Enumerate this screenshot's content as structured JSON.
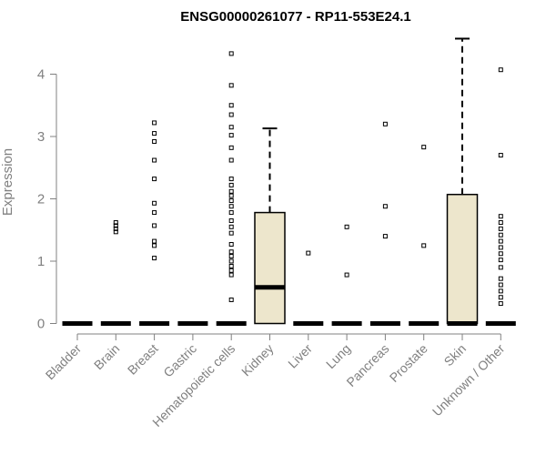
{
  "chart_data": {
    "type": "box",
    "title": "ENSG00000261077 - RP11-553E24.1",
    "xlabel": "",
    "ylabel": "Expression",
    "ylim": [
      0,
      4.6
    ],
    "yticks": [
      0,
      1,
      2,
      3,
      4
    ],
    "grid": false,
    "legend": "none",
    "colors": {
      "box_fill": "#EDE6CC",
      "stroke": "#000000",
      "axis_text": "#808080",
      "title": "#000000"
    },
    "categories": [
      "Bladder",
      "Brain",
      "Breast",
      "Gastric",
      "Hematopoietic cells",
      "Kidney",
      "Liver",
      "Lung",
      "Pancreas",
      "Prostate",
      "Skin",
      "Unknown / Other"
    ],
    "boxes": [
      {
        "q1": 0,
        "median": 0,
        "q3": 0,
        "whisker_low": 0,
        "whisker_high": 0,
        "outliers": []
      },
      {
        "q1": 0,
        "median": 0,
        "q3": 0,
        "whisker_low": 0,
        "whisker_high": 0,
        "outliers": [
          1.47,
          1.52,
          1.57,
          1.62
        ]
      },
      {
        "q1": 0,
        "median": 0,
        "q3": 0,
        "whisker_low": 0,
        "whisker_high": 0,
        "outliers": [
          1.05,
          1.25,
          1.32,
          1.57,
          1.78,
          1.93,
          2.32,
          2.62,
          2.92,
          3.05,
          3.22
        ]
      },
      {
        "q1": 0,
        "median": 0,
        "q3": 0,
        "whisker_low": 0,
        "whisker_high": 0,
        "outliers": []
      },
      {
        "q1": 0,
        "median": 0,
        "q3": 0,
        "whisker_low": 0,
        "whisker_high": 0,
        "outliers": [
          0.38,
          0.78,
          0.85,
          0.92,
          1.0,
          1.08,
          1.15,
          1.27,
          1.45,
          1.55,
          1.65,
          1.78,
          1.88,
          1.97,
          2.05,
          2.12,
          2.22,
          2.32,
          2.62,
          2.82,
          3.02,
          3.15,
          3.35,
          3.5,
          3.82,
          4.33
        ]
      },
      {
        "q1": 0,
        "median": 0.58,
        "q3": 1.78,
        "whisker_low": 0,
        "whisker_high": 3.13,
        "outliers": []
      },
      {
        "q1": 0,
        "median": 0,
        "q3": 0,
        "whisker_low": 0,
        "whisker_high": 0,
        "outliers": [
          1.13
        ]
      },
      {
        "q1": 0,
        "median": 0,
        "q3": 0,
        "whisker_low": 0,
        "whisker_high": 0,
        "outliers": [
          0.78,
          1.55
        ]
      },
      {
        "q1": 0,
        "median": 0,
        "q3": 0,
        "whisker_low": 0,
        "whisker_high": 0,
        "outliers": [
          1.4,
          1.88,
          3.2
        ]
      },
      {
        "q1": 0,
        "median": 0,
        "q3": 0,
        "whisker_low": 0,
        "whisker_high": 0,
        "outliers": [
          1.25,
          2.83
        ]
      },
      {
        "q1": 0,
        "median": 0,
        "q3": 2.07,
        "whisker_low": 0,
        "whisker_high": 4.57,
        "outliers": []
      },
      {
        "q1": 0,
        "median": 0,
        "q3": 0,
        "whisker_low": 0,
        "whisker_high": 0,
        "outliers": [
          0.32,
          0.42,
          0.52,
          0.62,
          0.72,
          0.9,
          1.02,
          1.12,
          1.22,
          1.32,
          1.42,
          1.52,
          1.62,
          1.72,
          2.7,
          4.07
        ]
      }
    ]
  }
}
